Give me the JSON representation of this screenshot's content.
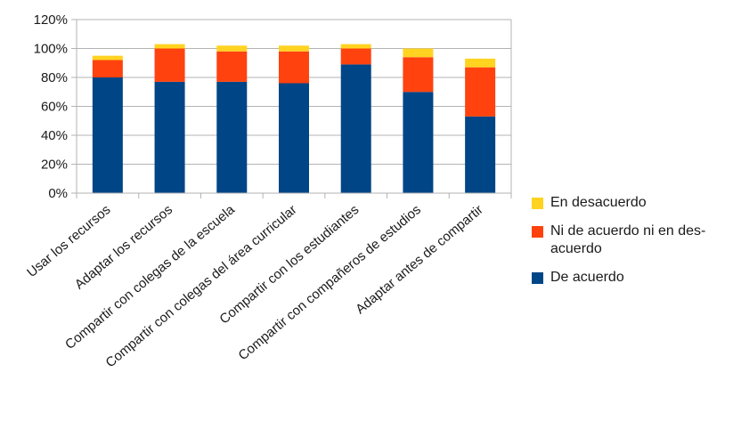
{
  "chart_data": {
    "type": "bar",
    "stacked": true,
    "categories": [
      "Usar los recursos",
      "Adaptar los recursos",
      "Compartir con colegas de la escuela",
      "Compartir con colegas del área curricular",
      "Compartir con los estudiantes",
      "Compartir con compañeros de estudios",
      "Adaptar antes de compartir"
    ],
    "series": [
      {
        "name": "De acuerdo",
        "color": "#004586",
        "values": [
          80,
          77,
          77,
          76,
          89,
          70,
          53
        ]
      },
      {
        "name": "Ni de acuerdo ni en des-acuerdo",
        "color": "#ff420e",
        "values": [
          12,
          23,
          21,
          22,
          11,
          24,
          34
        ]
      },
      {
        "name": "En desacuerdo",
        "color": "#ffd320",
        "values": [
          3,
          3,
          4,
          4,
          3,
          6,
          6
        ]
      }
    ],
    "legend_labels": [
      {
        "label": "En desacuerdo",
        "color": "#ffd320"
      },
      {
        "label": "Ni de acuerdo ni en des-acuerdo",
        "color": "#ff420e"
      },
      {
        "label": "De acuerdo",
        "color": "#004586"
      }
    ],
    "y_ticks": [
      "0%",
      "20%",
      "40%",
      "60%",
      "80%",
      "100%",
      "120%"
    ],
    "ylim": [
      0,
      120
    ],
    "grid": true,
    "legend_position": "right",
    "title": "",
    "xlabel": "",
    "ylabel": ""
  }
}
